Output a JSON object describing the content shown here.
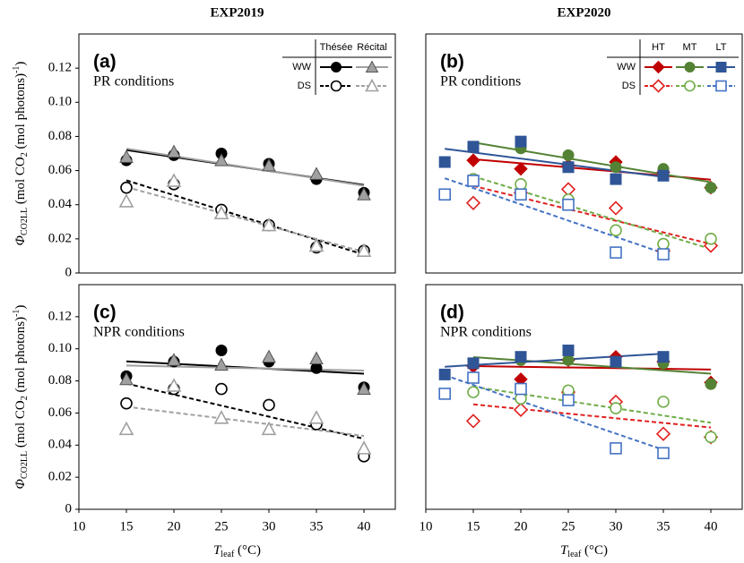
{
  "chart_data": [
    {
      "type": "scatter",
      "column_title": "EXP2019",
      "panel_label": "(a)",
      "subtitle": "PR conditions",
      "ylabel": {
        "symbol": "Φ",
        "symbol_sub": "CO2LL",
        "unit": " (mol CO",
        "unit_sub": "2",
        "unit_rest": " (mol photons)",
        "unit_sup": "-1",
        "close": ")"
      },
      "xlim": [
        10,
        43.3
      ],
      "ylim": [
        0,
        0.14
      ],
      "yticks": [
        0,
        0.02,
        0.04,
        0.06,
        0.08,
        {
          "value": 0.1,
          "label": "0.10"
        },
        0.12
      ],
      "legend": {
        "columns": [
          "Thésée",
          "Récital"
        ],
        "rows": [
          "WW",
          "DS"
        ]
      },
      "series": [
        {
          "color": "#000000",
          "marker": "circle",
          "filled": true,
          "dashed": false,
          "x": [
            15,
            20,
            25,
            30,
            35,
            40
          ],
          "values": [
            0.066,
            0.069,
            0.07,
            0.064,
            0.055,
            0.047
          ]
        },
        {
          "color": "#a0a0a0",
          "marker": "triangle",
          "filled": true,
          "dashed": false,
          "x": [
            15,
            20,
            25,
            30,
            35,
            40
          ],
          "values": [
            0.068,
            0.071,
            0.066,
            0.063,
            0.058,
            0.046
          ]
        },
        {
          "color": "#000000",
          "marker": "circle",
          "filled": false,
          "dashed": true,
          "x": [
            15,
            20,
            25,
            30,
            35,
            40
          ],
          "values": [
            0.05,
            0.052,
            0.037,
            0.028,
            0.015,
            0.013
          ]
        },
        {
          "color": "#a0a0a0",
          "marker": "triangle",
          "filled": false,
          "dashed": true,
          "x": [
            15,
            20,
            25,
            30,
            35,
            40
          ],
          "values": [
            0.042,
            0.054,
            0.035,
            0.028,
            0.016,
            0.013
          ]
        }
      ]
    },
    {
      "type": "scatter",
      "column_title": "EXP2020",
      "panel_label": "(b)",
      "subtitle": "PR conditions",
      "xlim": [
        10,
        43.3
      ],
      "ylim": [
        0,
        0.14
      ],
      "legend": {
        "columns": [
          "HT",
          "MT",
          "LT"
        ],
        "rows": [
          "WW",
          "DS"
        ]
      },
      "series": [
        {
          "color": "#c00000",
          "marker": "diamond",
          "filled": true,
          "dashed": false,
          "x": [
            15,
            20,
            25,
            30,
            35,
            40
          ],
          "values": [
            0.066,
            0.061,
            0.063,
            0.065,
            0.059,
            0.05
          ]
        },
        {
          "color": "#548235",
          "marker": "circle",
          "filled": true,
          "dashed": false,
          "x": [
            15,
            20,
            25,
            30,
            35,
            40
          ],
          "values": [
            0.074,
            0.073,
            0.069,
            0.062,
            0.061,
            0.05
          ]
        },
        {
          "color": "#2f5597",
          "marker": "square",
          "filled": true,
          "dashed": false,
          "x": [
            12,
            15,
            20,
            25,
            30,
            35
          ],
          "values": [
            0.065,
            0.074,
            0.077,
            0.062,
            0.055,
            0.057
          ]
        },
        {
          "color": "#e02020",
          "marker": "diamond",
          "filled": false,
          "dashed": true,
          "x": [
            15,
            20,
            25,
            30,
            35,
            40
          ],
          "values": [
            0.041,
            0.047,
            0.049,
            0.038,
            0.013,
            0.016
          ]
        },
        {
          "color": "#70ad47",
          "marker": "circle",
          "filled": false,
          "dashed": true,
          "x": [
            15,
            20,
            25,
            30,
            35,
            40
          ],
          "values": [
            0.055,
            0.052,
            0.043,
            0.025,
            0.017,
            0.02
          ]
        },
        {
          "color": "#4472c4",
          "marker": "square",
          "filled": false,
          "dashed": true,
          "x": [
            12,
            15,
            20,
            25,
            30,
            35
          ],
          "values": [
            0.046,
            0.054,
            0.046,
            0.04,
            0.012,
            0.011
          ]
        }
      ]
    },
    {
      "type": "scatter",
      "panel_label": "(c)",
      "subtitle": "NPR conditions",
      "ylabel": {
        "symbol": "Φ",
        "symbol_sub": "CO2LL",
        "unit": " (mol CO",
        "unit_sub": "2",
        "unit_rest": " (mol photons)",
        "unit_sup": "-1",
        "close": ")"
      },
      "xlabel": {
        "symbol": "T",
        "symbol_sub": "leaf",
        "unit": " (°C)"
      },
      "xlim": [
        10,
        43.3
      ],
      "ylim": [
        0,
        0.14
      ],
      "xticks": [
        10,
        15,
        20,
        25,
        30,
        35,
        40
      ],
      "yticks": [
        0,
        0.02,
        0.04,
        0.06,
        0.08,
        {
          "value": 0.1,
          "label": "0.10"
        },
        0.12
      ],
      "series": [
        {
          "color": "#000000",
          "marker": "circle",
          "filled": true,
          "dashed": false,
          "x": [
            15,
            20,
            25,
            30,
            35,
            40
          ],
          "values": [
            0.083,
            0.092,
            0.099,
            0.092,
            0.088,
            0.076
          ]
        },
        {
          "color": "#a0a0a0",
          "marker": "triangle",
          "filled": true,
          "dashed": false,
          "x": [
            15,
            20,
            25,
            30,
            35,
            40
          ],
          "values": [
            0.081,
            0.093,
            0.09,
            0.095,
            0.094,
            0.075
          ]
        },
        {
          "color": "#000000",
          "marker": "circle",
          "filled": false,
          "dashed": true,
          "x": [
            15,
            20,
            25,
            30,
            35,
            40
          ],
          "values": [
            0.066,
            0.075,
            0.075,
            0.065,
            0.053,
            0.033
          ]
        },
        {
          "color": "#a0a0a0",
          "marker": "triangle",
          "filled": false,
          "dashed": true,
          "x": [
            15,
            20,
            25,
            30,
            35,
            40
          ],
          "values": [
            0.05,
            0.077,
            0.057,
            0.05,
            0.057,
            0.038
          ]
        }
      ]
    },
    {
      "type": "scatter",
      "panel_label": "(d)",
      "subtitle": "NPR conditions",
      "xlabel": {
        "symbol": "T",
        "symbol_sub": "leaf",
        "unit": " (°C)"
      },
      "xlim": [
        10,
        43.3
      ],
      "ylim": [
        0,
        0.14
      ],
      "xticks": [
        10,
        15,
        20,
        25,
        30,
        35,
        40
      ],
      "series": [
        {
          "color": "#c00000",
          "marker": "diamond",
          "filled": true,
          "dashed": false,
          "x": [
            15,
            20,
            25,
            30,
            35,
            40
          ],
          "values": [
            0.089,
            0.081,
            0.093,
            0.095,
            0.092,
            0.079
          ]
        },
        {
          "color": "#548235",
          "marker": "circle",
          "filled": true,
          "dashed": false,
          "x": [
            15,
            20,
            25,
            30,
            35,
            40
          ],
          "values": [
            0.091,
            0.093,
            0.093,
            0.092,
            0.091,
            0.078
          ]
        },
        {
          "color": "#2f5597",
          "marker": "square",
          "filled": true,
          "dashed": false,
          "x": [
            12,
            15,
            20,
            25,
            30,
            35
          ],
          "values": [
            0.084,
            0.091,
            0.095,
            0.099,
            0.092,
            0.095
          ]
        },
        {
          "color": "#e02020",
          "marker": "diamond",
          "filled": false,
          "dashed": true,
          "x": [
            15,
            20,
            25,
            30,
            35,
            40
          ],
          "values": [
            0.055,
            0.062,
            0.073,
            0.067,
            0.047,
            0.045
          ]
        },
        {
          "color": "#70ad47",
          "marker": "circle",
          "filled": false,
          "dashed": true,
          "x": [
            15,
            20,
            25,
            30,
            35,
            40
          ],
          "values": [
            0.073,
            0.069,
            0.074,
            0.063,
            0.067,
            0.045
          ]
        },
        {
          "color": "#4472c4",
          "marker": "square",
          "filled": false,
          "dashed": true,
          "x": [
            12,
            15,
            20,
            25,
            30,
            35
          ],
          "values": [
            0.072,
            0.082,
            0.075,
            0.068,
            0.038,
            0.035
          ]
        }
      ]
    }
  ]
}
